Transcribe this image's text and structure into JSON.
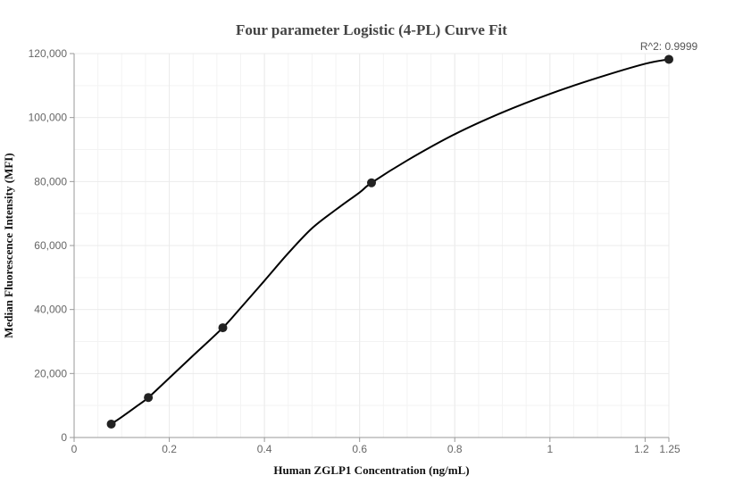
{
  "chart_data": {
    "type": "scatter",
    "title": "Four parameter Logistic (4-PL) Curve Fit",
    "xlabel": "Human ZGLP1 Concentration (ng/mL)",
    "ylabel": "Median Fluorescence Intensity (MFI)",
    "annotation": "R^2: 0.9999",
    "xlim": [
      0,
      1.25
    ],
    "ylim": [
      0,
      120000
    ],
    "x_ticks": [
      0,
      0.2,
      0.4,
      0.6,
      0.8,
      1,
      1.2,
      1.25
    ],
    "x_tick_labels": [
      "0",
      "0.2",
      "0.4",
      "0.6",
      "0.8",
      "1",
      "1.2",
      "1.25"
    ],
    "y_ticks": [
      0,
      20000,
      40000,
      60000,
      80000,
      100000,
      120000
    ],
    "y_tick_labels": [
      "0",
      "20,000",
      "40,000",
      "60,000",
      "80,000",
      "100,000",
      "120,000"
    ],
    "grid": true,
    "series": [
      {
        "points": [
          {
            "x": 0.078,
            "y": 4200
          },
          {
            "x": 0.156,
            "y": 12500
          },
          {
            "x": 0.3125,
            "y": 34300
          },
          {
            "x": 0.625,
            "y": 79600
          },
          {
            "x": 1.25,
            "y": 118200
          }
        ]
      }
    ],
    "fit_curve": [
      [
        0.078,
        4200
      ],
      [
        0.1,
        6400
      ],
      [
        0.13,
        9600
      ],
      [
        0.156,
        12500
      ],
      [
        0.2,
        18600
      ],
      [
        0.25,
        25600
      ],
      [
        0.3125,
        34300
      ],
      [
        0.35,
        40500
      ],
      [
        0.4,
        49000
      ],
      [
        0.45,
        57600
      ],
      [
        0.5,
        65400
      ],
      [
        0.55,
        71200
      ],
      [
        0.6,
        76600
      ],
      [
        0.625,
        79600
      ],
      [
        0.7,
        86600
      ],
      [
        0.8,
        94800
      ],
      [
        0.9,
        101600
      ],
      [
        1.0,
        107400
      ],
      [
        1.1,
        112400
      ],
      [
        1.2,
        116800
      ],
      [
        1.25,
        118200
      ]
    ],
    "colors": {
      "curve": "#000000",
      "point": "#222222",
      "grid": "#ebebeb",
      "axis": "#999999"
    }
  }
}
